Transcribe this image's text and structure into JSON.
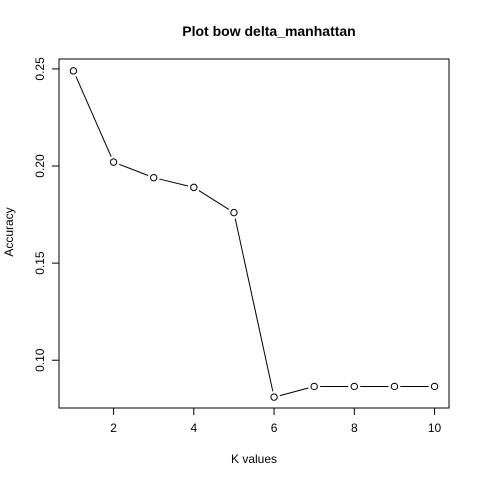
{
  "chart_data": {
    "type": "line",
    "title": "Plot bow delta_manhattan",
    "xlabel": "K values",
    "ylabel": "Accuracy",
    "x": [
      1,
      2,
      3,
      4,
      5,
      6,
      7,
      8,
      9,
      10
    ],
    "series": [
      {
        "values": [
          0.249,
          0.202,
          0.194,
          0.189,
          0.176,
          0.081,
          0.0865,
          0.0865,
          0.0865,
          0.0865
        ]
      }
    ],
    "xlim": [
      0.64,
      10.36
    ],
    "ylim": [
      0.0754,
      0.2551
    ],
    "xticks": [
      2,
      4,
      6,
      8,
      10
    ],
    "xtick_labels": [
      "2",
      "4",
      "6",
      "8",
      "10"
    ],
    "yticks": [
      0.1,
      0.15,
      0.2,
      0.25
    ],
    "ytick_labels": [
      "0.10",
      "0.15",
      "0.20",
      "0.25"
    ],
    "grid": false,
    "markers": "open-circle",
    "line_color": "#000000",
    "marker_fill": "#ffffff"
  }
}
